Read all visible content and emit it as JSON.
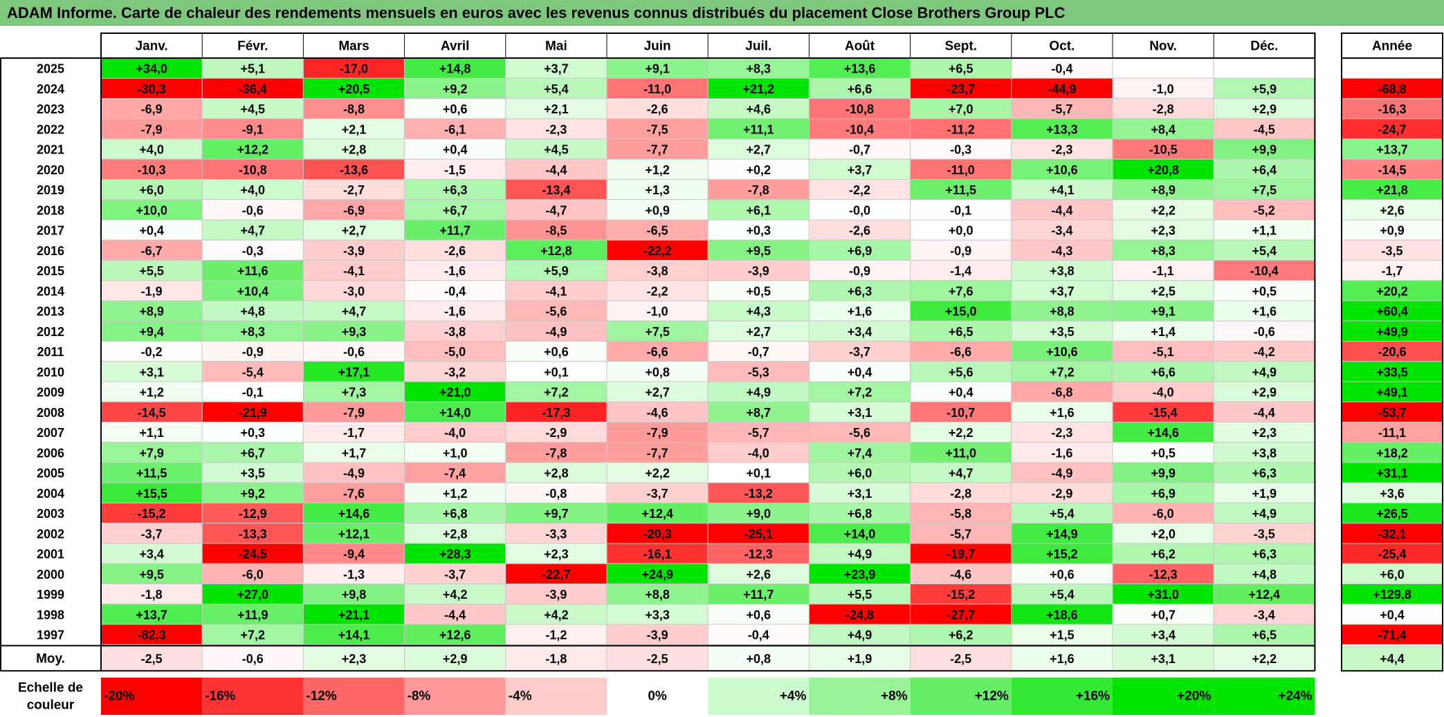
{
  "title": "ADAM Informe. Carte de chaleur des rendements mensuels en euros avec les revenus connus distribués du placement Close Brothers Group PLC",
  "colors": {
    "title_bg": "#7dc87d",
    "positive_max": "#00e400",
    "negative_max": "#ff0000",
    "neutral": "#ffffff"
  },
  "chart_data": {
    "type": "heatmap",
    "title": "ADAM Informe. Carte de chaleur des rendements mensuels en euros avec les revenus connus distribués du placement Close Brothers Group PLC",
    "months": [
      "Janv.",
      "Févr.",
      "Mars",
      "Avril",
      "Mai",
      "Juin",
      "Juil.",
      "Août",
      "Sept.",
      "Oct.",
      "Nov.",
      "Déc."
    ],
    "year_header": "Année",
    "years": [
      "2025",
      "2024",
      "2023",
      "2022",
      "2021",
      "2020",
      "2019",
      "2018",
      "2017",
      "2016",
      "2015",
      "2014",
      "2013",
      "2012",
      "2011",
      "2010",
      "2009",
      "2008",
      "2007",
      "2006",
      "2005",
      "2004",
      "2003",
      "2002",
      "2001",
      "2000",
      "1999",
      "1998",
      "1997"
    ],
    "values": [
      [
        "+34,0",
        "+5,1",
        "-17,0",
        "+14,8",
        "+3,7",
        "+9,1",
        "+8,3",
        "+13,6",
        "+6,5",
        "-0,4",
        "",
        ""
      ],
      [
        "-30,3",
        "-36,4",
        "+20,5",
        "+9,2",
        "+5,4",
        "-11,0",
        "+21,2",
        "+6,6",
        "-23,7",
        "-44,9",
        "-1,0",
        "+5,9"
      ],
      [
        "-6,9",
        "+4,5",
        "-8,8",
        "+0,6",
        "+2,1",
        "-2,6",
        "+4,6",
        "-10,8",
        "+7,0",
        "-5,7",
        "-2,8",
        "+2,9"
      ],
      [
        "-7,9",
        "-9,1",
        "+2,1",
        "-6,1",
        "-2,3",
        "-7,5",
        "+11,1",
        "-10,4",
        "-11,2",
        "+13,3",
        "+8,4",
        "-4,5"
      ],
      [
        "+4,0",
        "+12,2",
        "+2,8",
        "+0,4",
        "+4,5",
        "-7,7",
        "+2,7",
        "-0,7",
        "-0,3",
        "-2,3",
        "-10,5",
        "+9,9"
      ],
      [
        "-10,3",
        "-10,8",
        "-13,6",
        "-1,5",
        "-4,4",
        "+1,2",
        "+0,2",
        "+3,7",
        "-11,0",
        "+10,6",
        "+20,8",
        "+6,4"
      ],
      [
        "+6,0",
        "+4,0",
        "-2,7",
        "+6,3",
        "-13,4",
        "+1,3",
        "-7,8",
        "-2,2",
        "+11,5",
        "+4,1",
        "+8,9",
        "+7,5"
      ],
      [
        "+10,0",
        "-0,6",
        "-6,9",
        "+6,7",
        "-4,7",
        "+0,9",
        "+6,1",
        "-0,0",
        "-0,1",
        "-4,4",
        "+2,2",
        "-5,2"
      ],
      [
        "+0,4",
        "+4,7",
        "+2,7",
        "+11,7",
        "-8,5",
        "-6,5",
        "+0,3",
        "-2,6",
        "+0,0",
        "-3,4",
        "+2,3",
        "+1,1"
      ],
      [
        "-6,7",
        "-0,3",
        "-3,9",
        "-2,6",
        "+12,8",
        "-22,2",
        "+9,5",
        "+6,9",
        "-0,9",
        "-4,3",
        "+8,3",
        "+5,4"
      ],
      [
        "+5,5",
        "+11,6",
        "-4,1",
        "-1,6",
        "+5,9",
        "-3,8",
        "-3,9",
        "-0,9",
        "-1,4",
        "+3,8",
        "-1,1",
        "-10,4"
      ],
      [
        "-1,9",
        "+10,4",
        "-3,0",
        "-0,4",
        "-4,1",
        "-2,2",
        "+0,5",
        "+6,3",
        "+7,6",
        "+3,7",
        "+2,5",
        "+0,5"
      ],
      [
        "+8,9",
        "+4,8",
        "+4,7",
        "-1,6",
        "-5,6",
        "-1,0",
        "+4,3",
        "+1,6",
        "+15,0",
        "+8,8",
        "+9,1",
        "+1,6"
      ],
      [
        "+9,4",
        "+8,3",
        "+9,3",
        "-3,8",
        "-4,9",
        "+7,5",
        "+2,7",
        "+3,4",
        "+6,5",
        "+3,5",
        "+1,4",
        "-0,6"
      ],
      [
        "-0,2",
        "-0,9",
        "-0,6",
        "-5,0",
        "+0,6",
        "-6,6",
        "-0,7",
        "-3,7",
        "-6,6",
        "+10,6",
        "-5,1",
        "-4,2"
      ],
      [
        "+3,1",
        "-5,4",
        "+17,1",
        "-3,2",
        "+0,1",
        "+0,8",
        "-5,3",
        "+0,4",
        "+5,6",
        "+7,2",
        "+6,6",
        "+4,9"
      ],
      [
        "+1,2",
        "-0,1",
        "+7,3",
        "+21,0",
        "+7,2",
        "+2,7",
        "+4,9",
        "+7,2",
        "+0,4",
        "-6,8",
        "-4,0",
        "+2,9"
      ],
      [
        "-14,5",
        "-21,9",
        "-7,9",
        "+14,0",
        "-17,3",
        "-4,6",
        "+8,7",
        "+3,1",
        "-10,7",
        "+1,6",
        "-15,4",
        "-4,4"
      ],
      [
        "+1,1",
        "+0,3",
        "-1,7",
        "-4,0",
        "-2,9",
        "-7,9",
        "-5,7",
        "-5,6",
        "+2,2",
        "-2,3",
        "+14,6",
        "+2,3"
      ],
      [
        "+7,9",
        "+6,7",
        "+1,7",
        "+1,0",
        "-7,8",
        "-7,7",
        "-4,0",
        "+7,4",
        "+11,0",
        "-1,6",
        "+0,5",
        "+3,8"
      ],
      [
        "+11,5",
        "+3,5",
        "-4,9",
        "-7,4",
        "+2,8",
        "+2,2",
        "+0,1",
        "+6,0",
        "+4,7",
        "-4,9",
        "+9,9",
        "+6,3"
      ],
      [
        "+15,5",
        "+9,2",
        "-7,6",
        "+1,2",
        "-0,8",
        "-3,7",
        "-13,2",
        "+3,1",
        "-2,8",
        "-2,9",
        "+6,9",
        "+1,9"
      ],
      [
        "-15,2",
        "-12,9",
        "+14,6",
        "+6,8",
        "+9,7",
        "+12,4",
        "+9,0",
        "+6,8",
        "-5,8",
        "+5,4",
        "-6,0",
        "+4,9"
      ],
      [
        "-3,7",
        "-13,3",
        "+12,1",
        "+2,8",
        "-3,3",
        "-20,3",
        "-25,1",
        "+14,0",
        "-5,7",
        "+14,9",
        "+2,0",
        "-3,5"
      ],
      [
        "+3,4",
        "-24,5",
        "-9,4",
        "+28,3",
        "+2,3",
        "-16,1",
        "-12,3",
        "+4,9",
        "-19,7",
        "+15,2",
        "+6,2",
        "+6,3"
      ],
      [
        "+9,5",
        "-6,0",
        "-1,3",
        "-3,7",
        "-22,7",
        "+24,9",
        "+2,6",
        "+23,9",
        "-4,6",
        "+0,6",
        "-12,3",
        "+4,8"
      ],
      [
        "-1,8",
        "+27,0",
        "+9,8",
        "+4,2",
        "-3,9",
        "+8,8",
        "+11,7",
        "+5,5",
        "-15,2",
        "+5,4",
        "+31,0",
        "+12,4"
      ],
      [
        "+13,7",
        "+11,9",
        "+21,1",
        "-4,4",
        "+4,2",
        "+3,3",
        "+0,6",
        "-24,8",
        "-27,7",
        "+18,6",
        "+0,7",
        "-3,4"
      ],
      [
        "-82,3",
        "+7,2",
        "+14,1",
        "+12,6",
        "-1,2",
        "-3,9",
        "-0,4",
        "+4,9",
        "+6,2",
        "+1,5",
        "+3,4",
        "+6,5"
      ]
    ],
    "annual": [
      "",
      "-68,8",
      "-16,3",
      "-24,7",
      "+13,7",
      "-14,5",
      "+21,8",
      "+2,6",
      "+0,9",
      "-3,5",
      "-1,7",
      "+20,2",
      "+60,4",
      "+49,9",
      "-20,6",
      "+33,5",
      "+49,1",
      "-53,7",
      "-11,1",
      "+18,2",
      "+31,1",
      "+3,6",
      "+26,5",
      "-32,1",
      "-25,4",
      "+6,0",
      "+129,8",
      "+0,4",
      "-71,4"
    ],
    "average_label": "Moy.",
    "average": [
      "-2,5",
      "-0,6",
      "+2,3",
      "+2,9",
      "-1,8",
      "-2,5",
      "+0,8",
      "+1,9",
      "-2,5",
      "+1,6",
      "+3,1",
      "+2,2"
    ],
    "average_annual": "+4,4",
    "scale_label": [
      "Echelle de",
      "couleur"
    ],
    "scale": [
      {
        "label": "-20%",
        "value": -20
      },
      {
        "label": "-16%",
        "value": -16
      },
      {
        "label": "-12%",
        "value": -12
      },
      {
        "label": "-8%",
        "value": -8
      },
      {
        "label": "-4%",
        "value": -4
      },
      {
        "label": "0%",
        "value": 0
      },
      {
        "label": "+4%",
        "value": 4
      },
      {
        "label": "+8%",
        "value": 8
      },
      {
        "label": "+12%",
        "value": 12
      },
      {
        "label": "+16%",
        "value": 16
      },
      {
        "label": "+20%",
        "value": 20
      },
      {
        "label": "+24%",
        "value": 24
      }
    ]
  }
}
